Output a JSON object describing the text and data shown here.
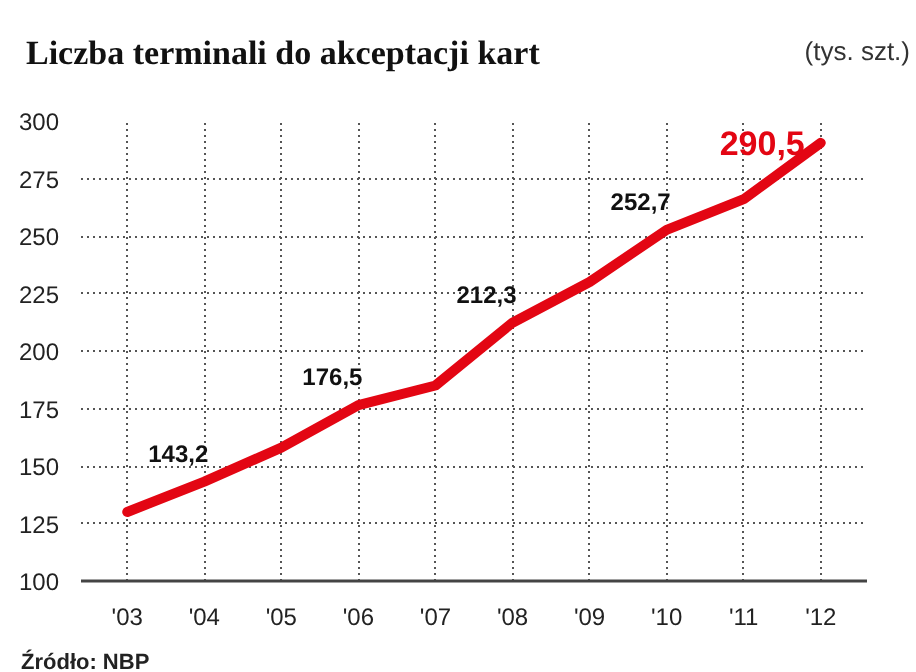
{
  "chart_data": {
    "type": "line",
    "title": "Liczba terminali do akceptacji kart",
    "ylabel": "(tys. szt.)",
    "categories": [
      "'03",
      "'04",
      "'05",
      "'06",
      "'07",
      "'08",
      "'09",
      "'10",
      "'11",
      "'12"
    ],
    "series": [
      {
        "color": "#e30613",
        "values": [
          130,
          143.2,
          158,
          176.5,
          185,
          212.3,
          230,
          252.7,
          266,
          290.5
        ],
        "value_labels": [
          null,
          "143,2",
          null,
          "176,5",
          null,
          "212,3",
          null,
          "252,7",
          null,
          "290,5"
        ]
      }
    ],
    "ylim": [
      100,
      300
    ],
    "yticks": [
      100,
      125,
      150,
      175,
      200,
      225,
      250,
      275,
      300
    ],
    "grid": true,
    "marker": "none",
    "line_style": "solid",
    "annotations": [
      "Źródło: NBP"
    ]
  }
}
